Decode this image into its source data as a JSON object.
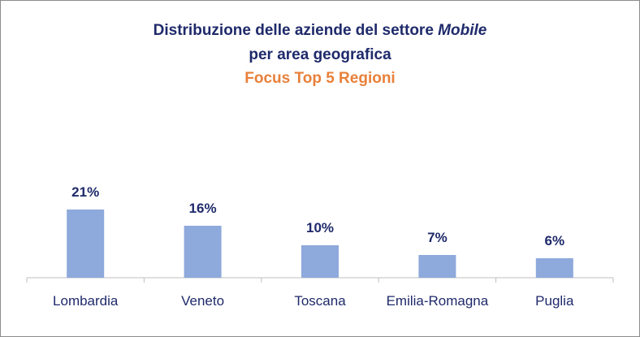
{
  "title": {
    "line1_pre": "Distribuzione delle aziende del settore ",
    "line1_em": "Mobile",
    "line2": "per area geografica",
    "subtitle": "Focus Top 5 Regioni"
  },
  "colors": {
    "title": "#1f2a6b",
    "subtitle": "#e8803a",
    "bar": "#8ea9db",
    "axis": "#bfbfbf",
    "frame": "#8c8c8c"
  },
  "chart_data": {
    "type": "bar",
    "title": "Distribuzione delle aziende del settore Mobile per area geografica",
    "subtitle": "Focus Top 5 Regioni",
    "categories": [
      "Lombardia",
      "Veneto",
      "Toscana",
      "Emilia-Romagna",
      "Puglia"
    ],
    "values": [
      21,
      16,
      10,
      7,
      6
    ],
    "value_labels": [
      "21%",
      "16%",
      "10%",
      "7%",
      "6%"
    ],
    "unit": "%",
    "xlabel": "",
    "ylabel": "",
    "ylim": [
      0,
      21
    ],
    "grid": false,
    "legend": "none"
  }
}
